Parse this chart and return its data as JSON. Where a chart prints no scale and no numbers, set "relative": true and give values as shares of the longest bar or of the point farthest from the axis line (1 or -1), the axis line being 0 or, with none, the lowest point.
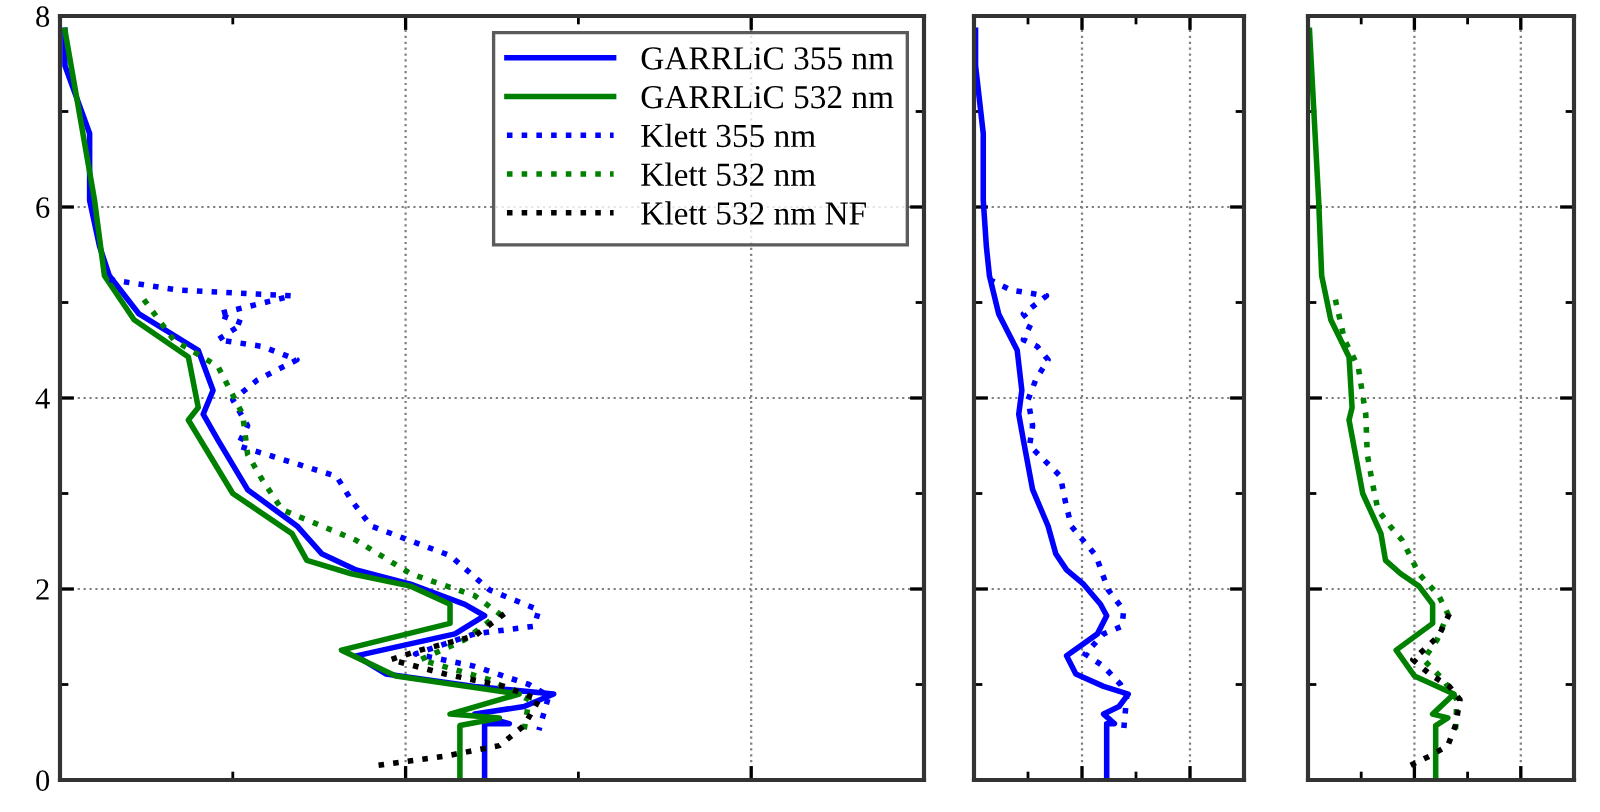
{
  "chart_data": [
    {
      "type": "line",
      "orientation": "horizontal",
      "relative": true,
      "ylim": [
        0,
        8
      ],
      "yticks": [
        0,
        2,
        4,
        6,
        8
      ],
      "grid": true,
      "legend": "top right",
      "tick_labels": "y",
      "marker": "none",
      "series": [
        {
          "name": "GARRLiC 355 nm",
          "color": "#0000ff",
          "line_style": "solid",
          "x": [
            7.85,
            7.48,
            6.77,
            6.07,
            5.59,
            5.28,
            4.88,
            4.5,
            4.08,
            3.83,
            3.56,
            3.04,
            2.66,
            2.37,
            2.2,
            2.05,
            1.84,
            1.72,
            1.53,
            1.3,
            1.11,
            0.98,
            0.9,
            0.77,
            0.69,
            0.59,
            0.59,
            0
          ],
          "values": [
            0.01,
            0.01,
            0.06,
            0.06,
            0.08,
            0.1,
            0.16,
            0.28,
            0.31,
            0.29,
            0.32,
            0.38,
            0.48,
            0.53,
            0.6,
            0.71,
            0.82,
            0.86,
            0.8,
            0.6,
            0.66,
            0.84,
            1,
            0.94,
            0.84,
            0.91,
            0.86,
            0.86
          ]
        },
        {
          "name": "GARRLiC 532 nm",
          "color": "#008000",
          "line_style": "solid",
          "x": [
            7.85,
            6.07,
            5.28,
            4.82,
            4.43,
            3.9,
            3.77,
            3.0,
            2.58,
            2.3,
            2.16,
            2.03,
            1.84,
            1.64,
            1.36,
            1.09,
            0.9,
            0.69,
            0.65,
            0.57,
            0
          ],
          "values": [
            0.01,
            0.07,
            0.09,
            0.15,
            0.26,
            0.28,
            0.26,
            0.35,
            0.47,
            0.5,
            0.59,
            0.71,
            0.79,
            0.79,
            0.57,
            0.68,
            0.93,
            0.79,
            0.89,
            0.81,
            0.81
          ]
        },
        {
          "name": "Klett 355 nm",
          "color": "#0000ff",
          "line_style": "dotted",
          "x": [
            5.24,
            5.13,
            5.07,
            4.88,
            4.78,
            4.61,
            4.54,
            4.4,
            4.19,
            3.98,
            3.71,
            3.5,
            3.39,
            3.18,
            2.93,
            2.66,
            2.35,
            1.99,
            1.78,
            1.61,
            1.53,
            1.32,
            1.19,
            1.0,
            0.88,
            0.52
          ],
          "values": [
            0.1,
            0.24,
            0.47,
            0.32,
            0.37,
            0.32,
            0.41,
            0.48,
            0.4,
            0.35,
            0.38,
            0.36,
            0.43,
            0.56,
            0.59,
            0.63,
            0.79,
            0.87,
            0.97,
            0.96,
            0.84,
            0.72,
            0.84,
            0.95,
            0.99,
            0.97
          ]
        },
        {
          "name": "Klett 532 nm",
          "color": "#008000",
          "line_style": "dotted",
          "x": [
            5.03,
            4.61,
            4.33,
            3.83,
            3.41,
            3.14,
            2.83,
            2.66,
            2.51,
            2.16,
            1.93,
            1.74,
            1.47,
            1.26,
            1.05,
            0.84,
            0.52
          ],
          "values": [
            0.17,
            0.23,
            0.32,
            0.37,
            0.38,
            0.41,
            0.45,
            0.53,
            0.6,
            0.71,
            0.84,
            0.89,
            0.82,
            0.73,
            0.87,
            0.95,
            0.94
          ]
        },
        {
          "name": "Klett 532 nm NF",
          "color": "#000000",
          "line_style": "dotted",
          "x": [
            1.74,
            1.51,
            1.36,
            1.26,
            1.11,
            0.98,
            0.84,
            0.57,
            0.36,
            0.25,
            0.15
          ],
          "values": [
            0.9,
            0.84,
            0.73,
            0.67,
            0.78,
            0.9,
            0.97,
            0.94,
            0.89,
            0.78,
            0.64
          ]
        }
      ]
    },
    {
      "type": "line",
      "orientation": "horizontal",
      "relative": true,
      "ylim": [
        0,
        8
      ],
      "yticks": [
        0,
        2,
        4,
        6,
        8
      ],
      "grid": true,
      "tick_labels": false,
      "marker": "none",
      "series": [
        {
          "color": "#0000ff",
          "line_style": "solid",
          "x": [
            7.85,
            7.48,
            6.77,
            6.07,
            5.59,
            5.28,
            4.88,
            4.5,
            4.08,
            3.83,
            3.56,
            3.04,
            2.66,
            2.37,
            2.2,
            2.05,
            1.84,
            1.72,
            1.53,
            1.3,
            1.11,
            0.98,
            0.9,
            0.77,
            0.69,
            0.59,
            0.59,
            0
          ],
          "values": [
            0.01,
            0.01,
            0.06,
            0.06,
            0.08,
            0.1,
            0.16,
            0.28,
            0.31,
            0.29,
            0.32,
            0.38,
            0.48,
            0.53,
            0.6,
            0.71,
            0.82,
            0.86,
            0.8,
            0.6,
            0.66,
            0.84,
            1,
            0.94,
            0.84,
            0.91,
            0.86,
            0.86
          ]
        },
        {
          "color": "#0000ff",
          "line_style": "dotted",
          "x": [
            5.24,
            5.13,
            5.07,
            4.88,
            4.78,
            4.61,
            4.54,
            4.4,
            4.19,
            3.98,
            3.71,
            3.5,
            3.39,
            3.18,
            2.93,
            2.66,
            2.35,
            1.99,
            1.78,
            1.61,
            1.53,
            1.32,
            1.19,
            1.0,
            0.88,
            0.52
          ],
          "values": [
            0.1,
            0.24,
            0.47,
            0.32,
            0.37,
            0.32,
            0.41,
            0.48,
            0.4,
            0.35,
            0.38,
            0.36,
            0.43,
            0.56,
            0.59,
            0.63,
            0.79,
            0.87,
            0.97,
            0.96,
            0.84,
            0.72,
            0.84,
            0.95,
            0.99,
            0.97
          ]
        }
      ]
    },
    {
      "type": "line",
      "orientation": "horizontal",
      "relative": true,
      "ylim": [
        0,
        8
      ],
      "yticks": [
        0,
        2,
        4,
        6,
        8
      ],
      "grid": true,
      "tick_labels": false,
      "marker": "none",
      "series": [
        {
          "color": "#008000",
          "line_style": "solid",
          "x": [
            7.85,
            6.07,
            5.28,
            4.82,
            4.43,
            3.9,
            3.77,
            3.0,
            2.58,
            2.3,
            2.16,
            2.03,
            1.84,
            1.64,
            1.36,
            1.09,
            0.9,
            0.69,
            0.65,
            0.57,
            0
          ],
          "values": [
            0.01,
            0.07,
            0.09,
            0.15,
            0.27,
            0.29,
            0.27,
            0.36,
            0.48,
            0.51,
            0.61,
            0.73,
            0.82,
            0.82,
            0.58,
            0.7,
            0.96,
            0.82,
            0.92,
            0.84,
            0.84
          ]
        },
        {
          "color": "#008000",
          "line_style": "dotted",
          "x": [
            5.03,
            4.61,
            4.33,
            3.83,
            3.41,
            3.14,
            2.83,
            2.66,
            2.51,
            2.16,
            1.93,
            1.74,
            1.47,
            1.26,
            1.05,
            0.84,
            0.52
          ],
          "values": [
            0.18,
            0.24,
            0.33,
            0.38,
            0.39,
            0.42,
            0.46,
            0.54,
            0.62,
            0.73,
            0.86,
            0.92,
            0.85,
            0.76,
            0.89,
            0.98,
            0.97
          ]
        },
        {
          "color": "#000000",
          "line_style": "dotted",
          "x": [
            1.74,
            1.51,
            1.36,
            1.26,
            1.11,
            0.98,
            0.84,
            0.57,
            0.36,
            0.25,
            0.15
          ],
          "values": [
            0.93,
            0.86,
            0.76,
            0.69,
            0.8,
            0.93,
            1,
            0.97,
            0.92,
            0.8,
            0.67
          ]
        }
      ]
    }
  ]
}
